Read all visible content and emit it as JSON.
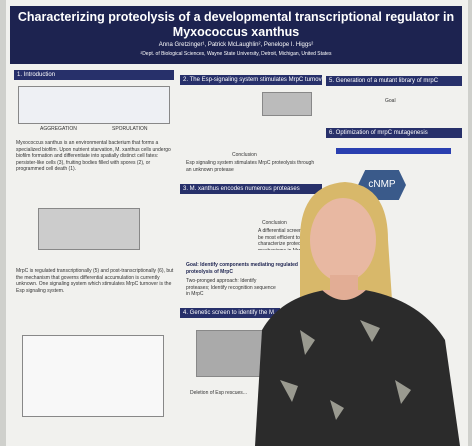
{
  "header": {
    "title": "Characterizing proteolysis of a developmental transcriptional regulator in Myxococcus xanthus",
    "authors": "Anna Gretzinger¹, Patrick McLaughlin², Penelope I. Higgs²",
    "affiliation": "²Dept. of Biological Sciences, Wayne State University, Detroit, Michigan, United States"
  },
  "sections": [
    {
      "heading": "1. Introduction",
      "labels": [
        "AGGREGATION",
        "SPORULATION"
      ],
      "text": "Myxococcus xanthus is an environmental bacterium that forms a specialized biofilm. Upon nutrient starvation, M. xanthus cells undergo biofilm formation and differentiate into spatially distinct cell fates: persister-like cells (3), fruiting bodies filled with spores (2), or programmed cell death (1).",
      "text2": "MrpC is regulated transcriptionally (5) and post-transcriptionally (6), but the mechanism that governs differential accumulation is currently unknown. One signaling system which stimulates MrpC turnover is the Esp signaling system."
    },
    {
      "heading": "2. The Esp-signaling system stimulates MrpC turnover",
      "labels": [
        "Conclusion"
      ],
      "text": "Esp signaling system stimulates MrpC proteolysis through an unknown protease"
    },
    {
      "heading": "3. M. xanthus encodes numerous proteases",
      "labels": [
        "Conclusion"
      ],
      "text": "A differential screen would be most efficient to characterize proteolysis mechanisms in MrpC"
    },
    {
      "heading": "Goal: Identify components mediating regulated proteolysis of MrpC",
      "labels": [],
      "text": "Two-pronged approach: Identify proteases; Identify recognition sequence in MrpC"
    },
    {
      "heading": "4. Genetic screen to identify the M...",
      "labels": [],
      "text": "Deletion of Esp rescues..."
    },
    {
      "heading": "5. Generation of a mutant library of mrpC",
      "labels": [
        "Goal"
      ],
      "text": ""
    },
    {
      "heading": "6. Optimization of mrpC mutagenesis",
      "labels": [
        "cNMP"
      ],
      "text": ""
    }
  ]
}
